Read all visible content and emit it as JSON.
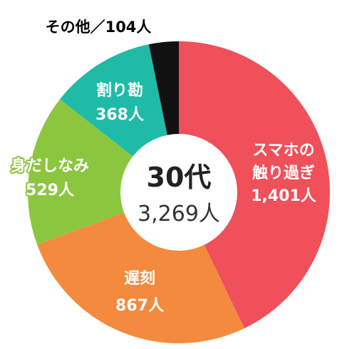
{
  "chart_data": {
    "type": "pie",
    "donut": true,
    "center": {
      "title": "30代",
      "total": "3,269人"
    },
    "slices": [
      {
        "name": "スマホの触り過ぎ",
        "label_lines": [
          "スマホの",
          "触り過ぎ"
        ],
        "value_label": "1,401人",
        "value": 1401,
        "color": "#f0505a",
        "label_color": "#ffffff"
      },
      {
        "name": "遅刻",
        "label_lines": [
          "遅刻"
        ],
        "value_label": "867人",
        "value": 867,
        "color": "#f48a3d",
        "label_color": "#ffffff"
      },
      {
        "name": "身だしなみ",
        "label_lines": [
          "身だしなみ"
        ],
        "value_label": "529人",
        "value": 529,
        "color": "#8cc63f",
        "label_color": "#ffffff"
      },
      {
        "name": "割り勘",
        "label_lines": [
          "割り勘"
        ],
        "value_label": "368人",
        "value": 368,
        "color": "#1fbba6",
        "label_color": "#ffffff"
      },
      {
        "name": "その他",
        "label_lines": [
          "その他／104人"
        ],
        "value_label": "",
        "value": 104,
        "color": "#111111",
        "label_color": "#000000"
      }
    ]
  }
}
